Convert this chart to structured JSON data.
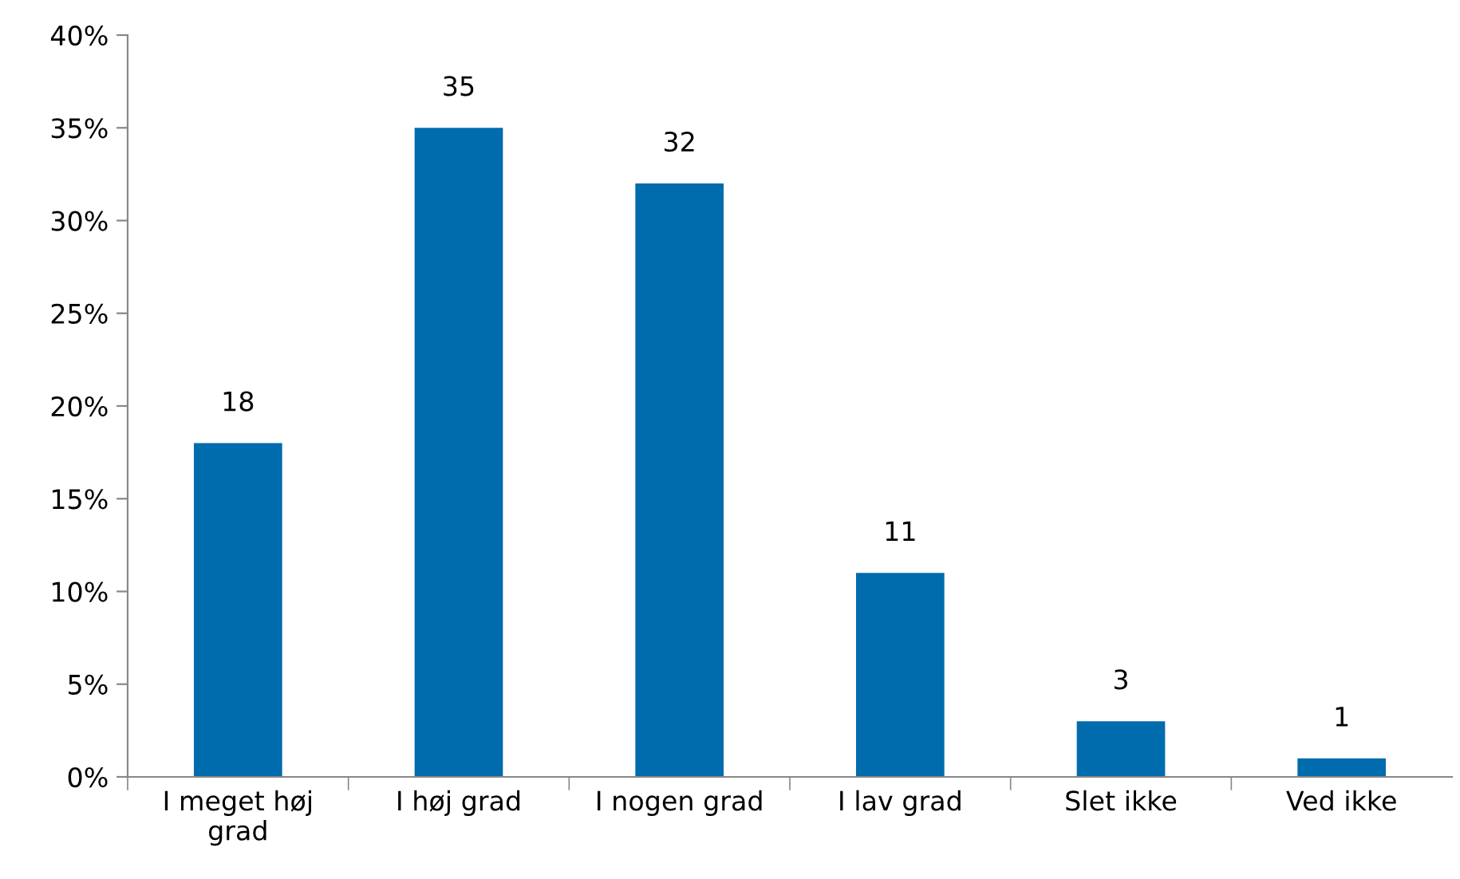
{
  "chart_data": {
    "type": "bar",
    "categories": [
      "I meget høj grad",
      "I høj grad",
      "I nogen grad",
      "I lav grad",
      "Slet ikke",
      "Ved ikke"
    ],
    "values": [
      18,
      35,
      32,
      11,
      3,
      1
    ],
    "color": "#006bad",
    "ylim": [
      0,
      40
    ],
    "yticks": [
      {
        "value": 0,
        "label": "0%"
      },
      {
        "value": 5,
        "label": "5%"
      },
      {
        "value": 10,
        "label": "10%"
      },
      {
        "value": 15,
        "label": "15%"
      },
      {
        "value": 20,
        "label": "20%"
      },
      {
        "value": 25,
        "label": "25%"
      },
      {
        "value": 30,
        "label": "30%"
      },
      {
        "value": 35,
        "label": "35%"
      },
      {
        "value": 40,
        "label": "40%"
      }
    ],
    "data_labels": true,
    "grid": false,
    "legend": false
  }
}
